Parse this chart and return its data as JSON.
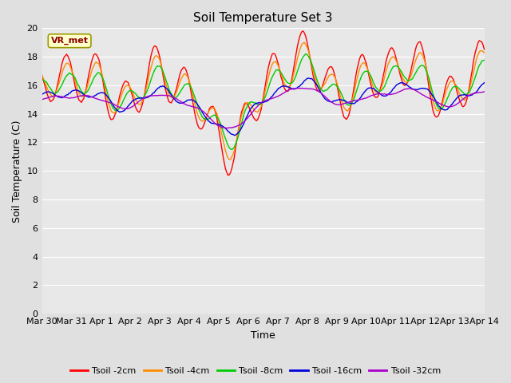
{
  "title": "Soil Temperature Set 3",
  "xlabel": "Time",
  "ylabel": "Soil Temperature (C)",
  "xlim": [
    0,
    15
  ],
  "ylim": [
    0,
    20
  ],
  "yticks": [
    0,
    2,
    4,
    6,
    8,
    10,
    12,
    14,
    16,
    18,
    20
  ],
  "xtick_labels": [
    "Mar 30",
    "Mar 31",
    "Apr 1",
    "Apr 2",
    "Apr 3",
    "Apr 4",
    "Apr 5",
    "Apr 6",
    "Apr 7",
    "Apr 8",
    "Apr 9",
    "Apr 10",
    "Apr 11",
    "Apr 12",
    "Apr 13",
    "Apr 14"
  ],
  "bg_color": "#e0e0e0",
  "plot_bg_color": "#e8e8e8",
  "line_colors": {
    "2cm": "#ff0000",
    "4cm": "#ff8c00",
    "8cm": "#00cc00",
    "16cm": "#0000dd",
    "32cm": "#aa00cc"
  },
  "legend_labels": [
    "Tsoil -2cm",
    "Tsoil -4cm",
    "Tsoil -8cm",
    "Tsoil -16cm",
    "Tsoil -32cm"
  ],
  "annotation_text": "VR_met",
  "annotation_color": "#8b0000",
  "annotation_bg": "#ffffcc",
  "gridcolor": "#ffffff",
  "line_width": 1.0
}
